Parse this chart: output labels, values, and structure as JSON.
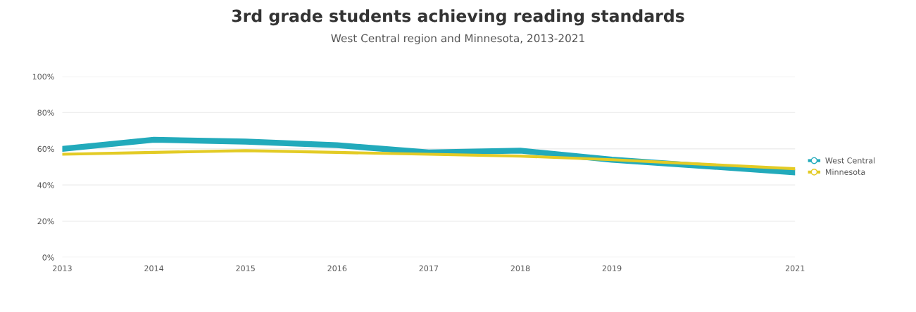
{
  "chart_data": {
    "type": "line",
    "title": "3rd grade students achieving reading standards",
    "subtitle": "West Central region and Minnesota, 2013-2021",
    "x": [
      2013,
      2014,
      2015,
      2016,
      2017,
      2018,
      2019,
      2021
    ],
    "series": [
      {
        "name": "West Central",
        "color": "#22aabb",
        "values": [
          60,
          65,
          64,
          62,
          58,
          59,
          54,
          47
        ]
      },
      {
        "name": "Minnesota",
        "color": "#e3cb25",
        "values": [
          57,
          58,
          59,
          58,
          57,
          56,
          54,
          49
        ]
      }
    ],
    "xlim": [
      2013,
      2021
    ],
    "xticks": [
      2013,
      2014,
      2015,
      2016,
      2017,
      2018,
      2019,
      2021
    ],
    "ylim": [
      0,
      100
    ],
    "yticks": [
      {
        "value": 0,
        "label": "0%"
      },
      {
        "value": 20,
        "label": "20%"
      },
      {
        "value": 40,
        "label": "40%"
      },
      {
        "value": 60,
        "label": "60%"
      },
      {
        "value": 80,
        "label": "80%"
      },
      {
        "value": 100,
        "label": "100%"
      }
    ],
    "grid": "y",
    "legend": "right",
    "line_style": "solid"
  }
}
